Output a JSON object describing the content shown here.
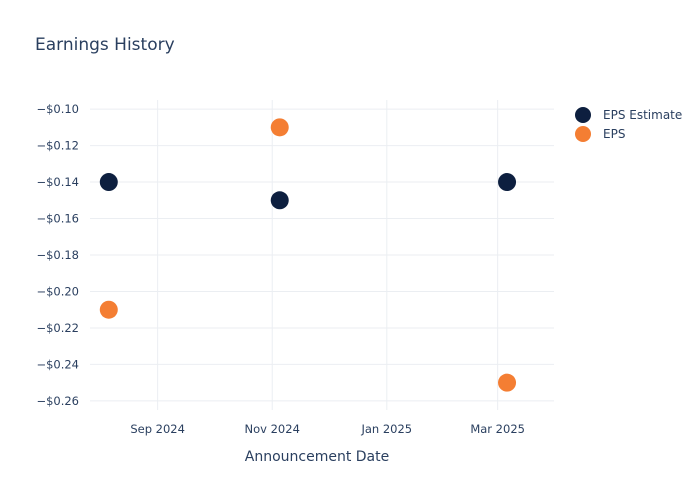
{
  "chart_data": {
    "type": "scatter",
    "title": "Earnings History",
    "xlabel": "Announcement Date",
    "ylabel": "",
    "x_ticks": [
      {
        "date": "2024-09-01",
        "label": "Sep 2024"
      },
      {
        "date": "2024-11-01",
        "label": "Nov 2024"
      },
      {
        "date": "2025-01-01",
        "label": "Jan 2025"
      },
      {
        "date": "2025-03-01",
        "label": "Mar 2025"
      }
    ],
    "xlim": [
      "2024-07-27",
      "2025-03-31"
    ],
    "ylim": [
      -0.265,
      -0.095
    ],
    "y_ticks": [
      -0.1,
      -0.12,
      -0.14,
      -0.16,
      -0.18,
      -0.2,
      -0.22,
      -0.24,
      -0.26
    ],
    "y_tick_labels": [
      "−$0.10",
      "−$0.12",
      "−$0.14",
      "−$0.16",
      "−$0.18",
      "−$0.20",
      "−$0.22",
      "−$0.24",
      "−$0.26"
    ],
    "grid": true,
    "legend_position": "top-right",
    "series": [
      {
        "name": "EPS Estimate",
        "color": "#0d1f3f",
        "points": [
          {
            "x": "2024-08-06",
            "y": -0.14
          },
          {
            "x": "2024-11-05",
            "y": -0.15
          },
          {
            "x": "2025-03-06",
            "y": -0.14
          }
        ]
      },
      {
        "name": "EPS",
        "color": "#f47e33",
        "points": [
          {
            "x": "2024-08-06",
            "y": -0.21
          },
          {
            "x": "2024-11-05",
            "y": -0.11
          },
          {
            "x": "2025-03-06",
            "y": -0.25
          }
        ]
      }
    ]
  }
}
